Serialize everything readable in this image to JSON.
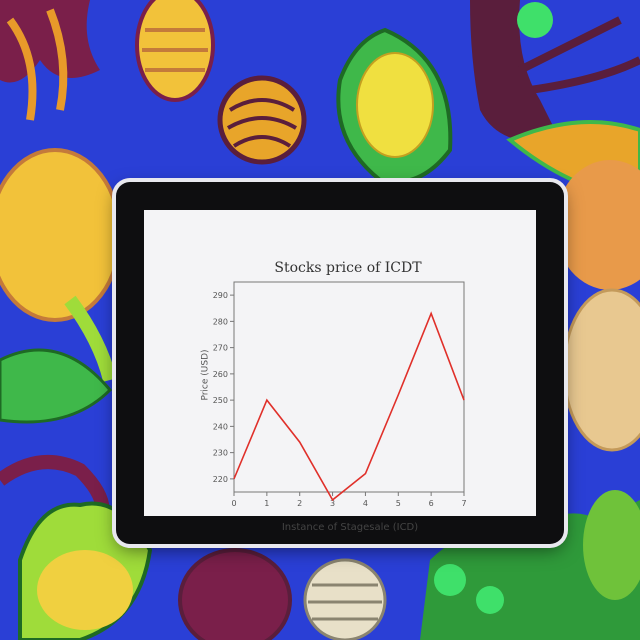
{
  "scene": {
    "colors": {
      "background": "#2a3fd6",
      "plants": [
        "#f2c23a",
        "#e8a52a",
        "#7a1f4a",
        "#5a1e3c",
        "#3fb84a",
        "#9fdc3a",
        "#e89a2a",
        "#f0d060",
        "#c47a3a",
        "#e8e0c8"
      ]
    }
  },
  "chart_data": {
    "type": "line",
    "title": "Stocks price of ICDT",
    "xlabel": "Instance of Stagesale (ICD)",
    "ylabel": "Price (USD)",
    "x": [
      0,
      1,
      2,
      3,
      4,
      5,
      6,
      7
    ],
    "x_tick_labels": [
      "0",
      "1",
      "2",
      "3",
      "4",
      "5",
      "6",
      "7"
    ],
    "xlim": [
      0,
      7
    ],
    "y_tick_labels": [
      "220",
      "230",
      "240",
      "250",
      "260",
      "270",
      "280",
      "290"
    ],
    "ylim": [
      215,
      295
    ],
    "grid": false,
    "series": [
      {
        "values": [
          220,
          250,
          234,
          212,
          222,
          252,
          283,
          250
        ],
        "color": "#e0302a"
      }
    ]
  }
}
